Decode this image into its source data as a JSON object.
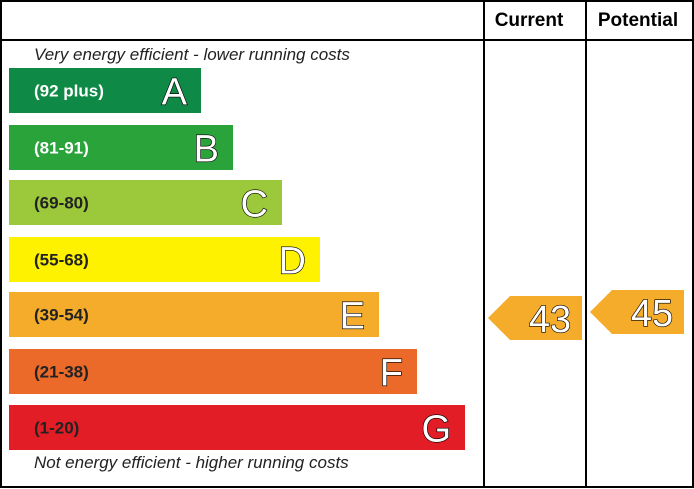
{
  "chart_data": {
    "type": "bar",
    "title": "",
    "columns": {
      "current_label": "Current",
      "potential_label": "Potential"
    },
    "top_note": "Very energy efficient - lower running costs",
    "bottom_note": "Not energy efficient - higher running costs",
    "bands": [
      {
        "letter": "A",
        "range": "(92 plus)",
        "min": 92,
        "max": 100,
        "color": "#0f8a46",
        "dark_text": false
      },
      {
        "letter": "B",
        "range": "(81-91)",
        "min": 81,
        "max": 91,
        "color": "#2ba33b",
        "dark_text": false
      },
      {
        "letter": "C",
        "range": "(69-80)",
        "min": 69,
        "max": 80,
        "color": "#9bc93b",
        "dark_text": true
      },
      {
        "letter": "D",
        "range": "(55-68)",
        "min": 55,
        "max": 68,
        "color": "#fff200",
        "dark_text": true
      },
      {
        "letter": "E",
        "range": "(39-54)",
        "min": 39,
        "max": 54,
        "color": "#f5ac2b",
        "dark_text": true
      },
      {
        "letter": "F",
        "range": "(21-38)",
        "min": 21,
        "max": 38,
        "color": "#eb6a29",
        "dark_text": true
      },
      {
        "letter": "G",
        "range": "(1-20)",
        "min": 1,
        "max": 20,
        "color": "#e31d25",
        "dark_text": true
      }
    ],
    "current": {
      "value": "43",
      "band": "E",
      "color": "#f5ac2b"
    },
    "potential": {
      "value": "45",
      "band": "E",
      "color": "#f5ac2b"
    }
  }
}
